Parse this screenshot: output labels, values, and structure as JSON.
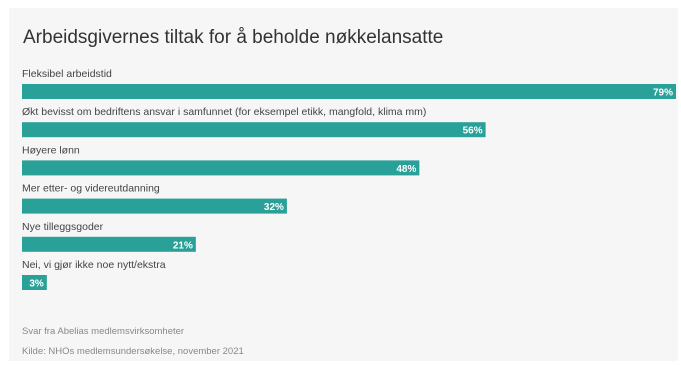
{
  "footer": {
    "note": "Svar fra Abelias medlemsvirksomheter",
    "source": "Kilde: NHOs medlemsundersøkelse, november 2021"
  },
  "chart_data": {
    "type": "bar",
    "orientation": "horizontal",
    "title": "Arbeidsgivernes tiltak for å beholde nøkkelansatte",
    "categories": [
      "Fleksibel arbeidstid",
      "Økt bevisst om bedriftens ansvar i samfunnet (for eksempel etikk, mangfold, klima mm)",
      "Høyere lønn",
      "Mer etter- og videreutdanning",
      "Nye tilleggsgoder",
      "Nei, vi gjør ikke noe nytt/ekstra"
    ],
    "values": [
      79,
      56,
      48,
      32,
      21,
      3
    ],
    "value_labels": [
      "79%",
      "56%",
      "48%",
      "32%",
      "21%",
      "3%"
    ],
    "unit": "%",
    "xlim": [
      0,
      79
    ],
    "bar_color": "#2aa198",
    "grid": false,
    "legend": "none"
  }
}
